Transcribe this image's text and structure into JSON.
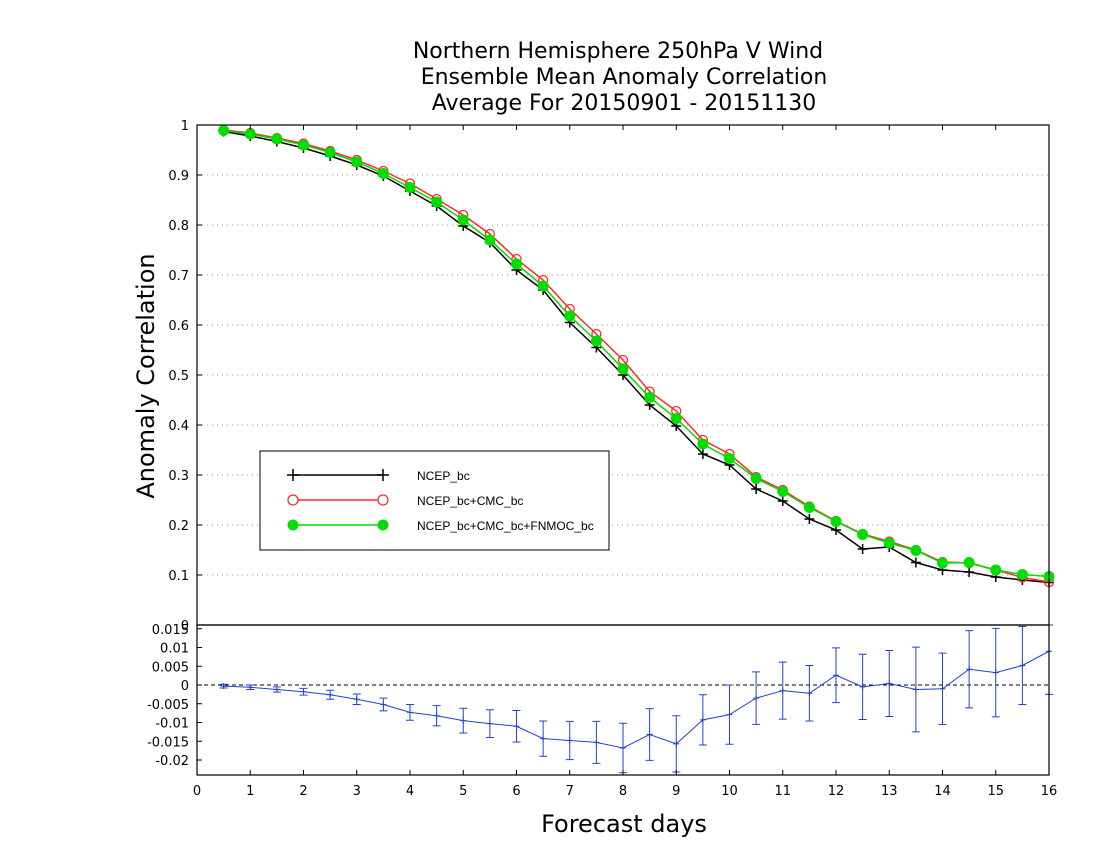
{
  "chart_data": [
    {
      "type": "line",
      "title_lines": [
        "Northern Hemisphere 250hPa V Wind",
        "Ensemble Mean Anomaly Correlation",
        "Average For 20150901 - 20151130"
      ],
      "ylabel": "Anomaly Correlation",
      "xlim": [
        0,
        16
      ],
      "ylim": [
        0,
        1
      ],
      "y_ticks": [
        "0",
        "0.1",
        "0.2",
        "0.3",
        "0.4",
        "0.5",
        "0.6",
        "0.7",
        "0.8",
        "0.9",
        "1"
      ],
      "grid": true,
      "legend_placement": "left-center",
      "x": [
        0.5,
        1,
        1.5,
        2,
        2.5,
        3,
        3.5,
        4,
        4.5,
        5,
        5.5,
        6,
        6.5,
        7,
        7.5,
        8,
        8.5,
        9,
        9.5,
        10,
        10.5,
        11,
        11.5,
        12,
        12.5,
        13,
        13.5,
        14,
        14.5,
        15,
        15.5,
        16
      ],
      "series": [
        {
          "name": "NCEP_bc",
          "color": "#000000",
          "marker": "plus",
          "values": [
            0.987,
            0.978,
            0.967,
            0.954,
            0.938,
            0.92,
            0.898,
            0.868,
            0.838,
            0.798,
            0.765,
            0.71,
            0.67,
            0.605,
            0.555,
            0.5,
            0.44,
            0.398,
            0.342,
            0.32,
            0.272,
            0.248,
            0.212,
            0.19,
            0.152,
            0.156,
            0.125,
            0.11,
            0.106,
            0.096,
            0.09,
            0.085
          ]
        },
        {
          "name": "NCEP_bc+CMC_bc",
          "color": "#ff2a2a",
          "marker": "open-circle",
          "values": [
            0.99,
            0.984,
            0.974,
            0.963,
            0.948,
            0.93,
            0.908,
            0.883,
            0.852,
            0.82,
            0.782,
            0.732,
            0.69,
            0.632,
            0.582,
            0.53,
            0.467,
            0.428,
            0.37,
            0.342,
            0.296,
            0.27,
            0.237,
            0.208,
            0.182,
            0.167,
            0.15,
            0.126,
            0.124,
            0.11,
            0.095,
            0.086
          ]
        },
        {
          "name": "NCEP_bc+CMC_bc+FNMOC_bc",
          "color": "#00dd00",
          "marker": "filled-circle",
          "values": [
            0.989,
            0.982,
            0.972,
            0.96,
            0.945,
            0.926,
            0.903,
            0.875,
            0.846,
            0.81,
            0.77,
            0.722,
            0.678,
            0.618,
            0.568,
            0.512,
            0.455,
            0.413,
            0.362,
            0.333,
            0.293,
            0.267,
            0.235,
            0.207,
            0.181,
            0.164,
            0.149,
            0.124,
            0.125,
            0.11,
            0.101,
            0.097
          ]
        }
      ]
    },
    {
      "type": "line",
      "xlabel": "Forecast days",
      "xlim": [
        0,
        16
      ],
      "ylim": [
        -0.024,
        0.016
      ],
      "x_ticks": [
        "0",
        "1",
        "2",
        "3",
        "4",
        "5",
        "6",
        "7",
        "8",
        "9",
        "10",
        "11",
        "12",
        "13",
        "14",
        "15",
        "16"
      ],
      "y_ticks": [
        "-0.02",
        "-0.015",
        "-0.01",
        "-0.005",
        "0",
        "0.005",
        "0.01",
        "0.015"
      ],
      "series": [
        {
          "name": "",
          "color": "#2244cc",
          "x": [
            0.5,
            1,
            1.5,
            2,
            2.5,
            3,
            3.5,
            4,
            4.5,
            5,
            5.5,
            6,
            6.5,
            7,
            7.5,
            8,
            8.5,
            9,
            9.5,
            10,
            10.5,
            11,
            11.5,
            12,
            12.5,
            13,
            13.5,
            14,
            14.5,
            15,
            15.5,
            16
          ],
          "values": [
            -0.0003,
            -0.0006,
            -0.0012,
            -0.0018,
            -0.0026,
            -0.0038,
            -0.0052,
            -0.0073,
            -0.0082,
            -0.0095,
            -0.0103,
            -0.011,
            -0.0143,
            -0.0148,
            -0.0153,
            -0.0168,
            -0.0132,
            -0.0157,
            -0.0093,
            -0.0079,
            -0.0035,
            -0.0015,
            -0.0022,
            0.0026,
            -0.0005,
            0.0004,
            -0.0012,
            -0.001,
            0.0042,
            0.0033,
            0.0052,
            0.009
          ],
          "err_low": [
            -0.0008,
            -0.0012,
            -0.0019,
            -0.0027,
            -0.0038,
            -0.0052,
            -0.0069,
            -0.0094,
            -0.0109,
            -0.0128,
            -0.014,
            -0.0152,
            -0.019,
            -0.0199,
            -0.0209,
            -0.0234,
            -0.0201,
            -0.0232,
            -0.016,
            -0.0158,
            -0.0105,
            -0.0091,
            -0.0096,
            -0.0047,
            -0.0092,
            -0.0084,
            -0.0125,
            -0.0105,
            -0.0061,
            -0.0085,
            -0.0052,
            -0.0025
          ],
          "err_high": [
            0.0002,
            0.0,
            -0.0005,
            -0.0009,
            -0.0014,
            -0.0024,
            -0.0035,
            -0.0052,
            -0.0055,
            -0.0062,
            -0.0066,
            -0.0068,
            -0.0096,
            -0.0097,
            -0.0097,
            -0.0102,
            -0.0063,
            -0.0082,
            -0.0026,
            0.0,
            0.0035,
            0.0061,
            0.0052,
            0.0099,
            0.0082,
            0.0092,
            0.0101,
            0.0085,
            0.0145,
            0.0151,
            0.0156,
            0.016
          ]
        }
      ]
    }
  ]
}
